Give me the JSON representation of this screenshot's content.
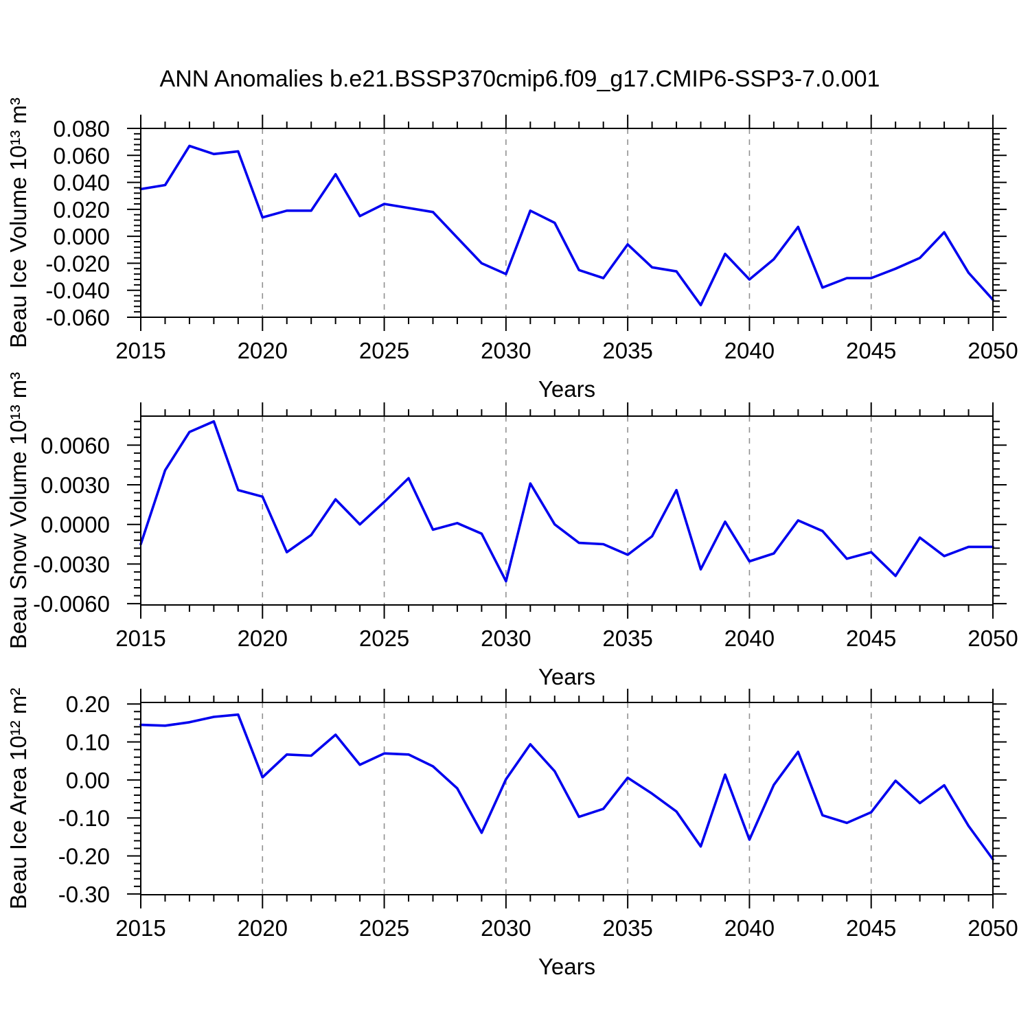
{
  "title": "ANN Anomalies b.e21.BSSP370cmip6.f09_g17.CMIP6-SSP3-7.0.001",
  "line_color": "#0000ee",
  "grid_color": "#909090",
  "axis_color": "#000000",
  "chart_data": [
    {
      "type": "line",
      "title": "",
      "xlabel": "Years",
      "ylabel": "Beau Ice Volume 10¹³ m³",
      "legend_position": "none",
      "grid": "dashed-vertical",
      "xlim": [
        2015,
        2050
      ],
      "ylim": [
        -0.06,
        0.08
      ],
      "x": [
        2015,
        2016,
        2017,
        2018,
        2019,
        2020,
        2021,
        2022,
        2023,
        2024,
        2025,
        2026,
        2027,
        2028,
        2029,
        2030,
        2031,
        2032,
        2033,
        2034,
        2035,
        2036,
        2037,
        2038,
        2039,
        2040,
        2041,
        2042,
        2043,
        2044,
        2045,
        2046,
        2047,
        2048,
        2049,
        2050
      ],
      "values": [
        0.035,
        0.038,
        0.067,
        0.061,
        0.063,
        0.014,
        0.019,
        0.019,
        0.046,
        0.015,
        0.024,
        0.021,
        0.018,
        -0.001,
        -0.02,
        -0.028,
        0.019,
        0.01,
        -0.025,
        -0.031,
        -0.006,
        -0.023,
        -0.026,
        -0.051,
        -0.013,
        -0.032,
        -0.017,
        0.007,
        -0.038,
        -0.031,
        -0.031,
        -0.024,
        -0.016,
        0.003,
        -0.027,
        -0.047
      ],
      "ytick_values": [
        0.08,
        0.06,
        0.04,
        0.02,
        0.0,
        -0.02,
        -0.04,
        -0.06
      ],
      "ytick_labels": [
        "0.080",
        "0.060",
        "0.040",
        "0.020",
        "0.000",
        "-0.020",
        "-0.040",
        "-0.060"
      ],
      "y_minor_step": 0.004,
      "xtick_major": [
        2015,
        2020,
        2025,
        2030,
        2035,
        2040,
        2045,
        2050
      ],
      "xtick_labels": [
        "2015",
        "2020",
        "2025",
        "2030",
        "2035",
        "2040",
        "2045",
        "2050"
      ],
      "grid_x": [
        2020,
        2025,
        2030,
        2035,
        2040,
        2045
      ]
    },
    {
      "type": "line",
      "title": "",
      "xlabel": "Years",
      "ylabel": "Beau Snow Volume 10¹³ m³",
      "legend_position": "none",
      "grid": "dashed-vertical",
      "xlim": [
        2015,
        2050
      ],
      "ylim": [
        -0.0061,
        0.0082
      ],
      "x": [
        2015,
        2016,
        2017,
        2018,
        2019,
        2020,
        2021,
        2022,
        2023,
        2024,
        2025,
        2026,
        2027,
        2028,
        2029,
        2030,
        2031,
        2032,
        2033,
        2034,
        2035,
        2036,
        2037,
        2038,
        2039,
        2040,
        2041,
        2042,
        2043,
        2044,
        2045,
        2046,
        2047,
        2048,
        2049,
        2050
      ],
      "values": [
        -0.0015,
        0.0041,
        0.007,
        0.0078,
        0.0026,
        0.0021,
        -0.0021,
        -0.0008,
        0.0019,
        0.0,
        0.0017,
        0.0035,
        -0.0004,
        0.0001,
        -0.0007,
        -0.0043,
        0.0031,
        0.0,
        -0.0014,
        -0.0015,
        -0.0023,
        -0.0009,
        0.0026,
        -0.0034,
        0.0002,
        -0.0028,
        -0.0022,
        0.0003,
        -0.0005,
        -0.0026,
        -0.0021,
        -0.0039,
        -0.001,
        -0.0024,
        -0.0017,
        -0.0017
      ],
      "ytick_values": [
        0.006,
        0.003,
        0.0,
        -0.003,
        -0.006
      ],
      "ytick_labels": [
        "0.0060",
        "0.0030",
        "0.0000",
        "-0.0030",
        "-0.0060"
      ],
      "y_minor_step": 0.0006,
      "xtick_major": [
        2015,
        2020,
        2025,
        2030,
        2035,
        2040,
        2045,
        2050
      ],
      "xtick_labels": [
        "2015",
        "2020",
        "2025",
        "2030",
        "2035",
        "2040",
        "2045",
        "2050"
      ],
      "grid_x": [
        2020,
        2025,
        2030,
        2035,
        2040,
        2045
      ]
    },
    {
      "type": "line",
      "title": "",
      "xlabel": "Years",
      "ylabel": "Beau Ice Area 10¹² m²",
      "legend_position": "none",
      "grid": "dashed-vertical",
      "xlim": [
        2015,
        2050
      ],
      "ylim": [
        -0.302,
        0.204
      ],
      "x": [
        2015,
        2016,
        2017,
        2018,
        2019,
        2020,
        2021,
        2022,
        2023,
        2024,
        2025,
        2026,
        2027,
        2028,
        2029,
        2030,
        2031,
        2032,
        2033,
        2034,
        2035,
        2036,
        2037,
        2038,
        2039,
        2040,
        2041,
        2042,
        2043,
        2044,
        2045,
        2046,
        2047,
        2048,
        2049,
        2050
      ],
      "values": [
        0.145,
        0.143,
        0.152,
        0.166,
        0.172,
        0.007,
        0.067,
        0.064,
        0.119,
        0.04,
        0.07,
        0.067,
        0.036,
        -0.022,
        -0.139,
        0.002,
        0.094,
        0.023,
        -0.097,
        -0.076,
        0.006,
        -0.036,
        -0.083,
        -0.175,
        0.014,
        -0.157,
        -0.013,
        0.074,
        -0.093,
        -0.113,
        -0.085,
        -0.002,
        -0.061,
        -0.014,
        -0.121,
        -0.209
      ],
      "ytick_values": [
        0.2,
        0.1,
        0.0,
        -0.1,
        -0.2,
        -0.3
      ],
      "ytick_labels": [
        "0.20",
        "0.10",
        "0.00",
        "-0.10",
        "-0.20",
        "-0.30"
      ],
      "y_minor_step": 0.02,
      "xtick_major": [
        2015,
        2020,
        2025,
        2030,
        2035,
        2040,
        2045,
        2050
      ],
      "xtick_labels": [
        "2015",
        "2020",
        "2025",
        "2030",
        "2035",
        "2040",
        "2045",
        "2050"
      ],
      "grid_x": [
        2020,
        2025,
        2030,
        2035,
        2040,
        2045
      ]
    }
  ]
}
